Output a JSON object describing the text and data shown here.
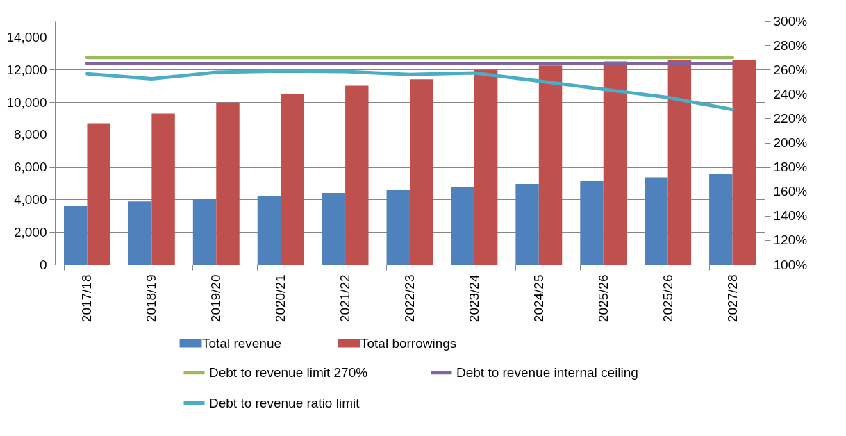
{
  "chart_data": {
    "type": "bar",
    "categories": [
      "2017/18",
      "2018/19",
      "2019/20",
      "2020/21",
      "2021/22",
      "2022/23",
      "2023/24",
      "2024/25",
      "2025/26",
      "2025/26",
      "2027/28"
    ],
    "series": [
      {
        "name": "Total revenue",
        "color": "#4f81bd",
        "values": [
          3600,
          3880,
          4050,
          4230,
          4400,
          4600,
          4740,
          4960,
          5140,
          5360,
          5570
        ]
      },
      {
        "name": "Total borrowings",
        "color": "#c0504d",
        "values": [
          8700,
          9290,
          9970,
          10500,
          11000,
          11400,
          11980,
          12250,
          12500,
          12570,
          12600
        ]
      },
      {
        "name": "Debt to revenue limit 270%",
        "type": "line",
        "axis": "y2",
        "color": "#9bbb59",
        "values": [
          270,
          270,
          270,
          270,
          270,
          270,
          270,
          270,
          270,
          270,
          270
        ]
      },
      {
        "name": "Debt to revenue internal ceiling",
        "type": "line",
        "axis": "y2",
        "color": "#8064a2",
        "values": [
          265,
          265,
          265,
          265,
          265,
          265,
          265,
          265,
          265,
          265,
          265
        ]
      },
      {
        "name": "Debt to revenue ratio limit",
        "type": "line",
        "axis": "y2",
        "color": "#4bacc6",
        "values": [
          256.6,
          252.4,
          257.8,
          258.9,
          258.4,
          256,
          257.3,
          250.6,
          243.8,
          237.1,
          227.2
        ]
      }
    ],
    "ylim": [
      0,
      15000
    ],
    "yticks": [
      0,
      {
        "value": 2000,
        "label": "2,000"
      },
      {
        "value": 4000,
        "label": "4,000"
      },
      {
        "value": 6000,
        "label": "6,000"
      },
      {
        "value": 8000,
        "label": "8,000"
      },
      {
        "value": 10000,
        "label": "10,000"
      },
      {
        "value": 12000,
        "label": "12,000"
      },
      {
        "value": 14000,
        "label": "14,000"
      }
    ],
    "y2lim": [
      100,
      300
    ],
    "y2ticks": [
      {
        "value": 100,
        "label": "100%"
      },
      {
        "value": 120,
        "label": "120%"
      },
      {
        "value": 140,
        "label": "140%"
      },
      {
        "value": 160,
        "label": "160%"
      },
      {
        "value": 180,
        "label": "180%"
      },
      {
        "value": 200,
        "label": "200%"
      },
      {
        "value": 220,
        "label": "220%"
      },
      {
        "value": 240,
        "label": "240%"
      },
      {
        "value": 260,
        "label": "260%"
      },
      {
        "value": 280,
        "label": "280%"
      },
      {
        "value": 300,
        "label": "300%"
      }
    ],
    "grid": "y",
    "legend": "bottom"
  }
}
